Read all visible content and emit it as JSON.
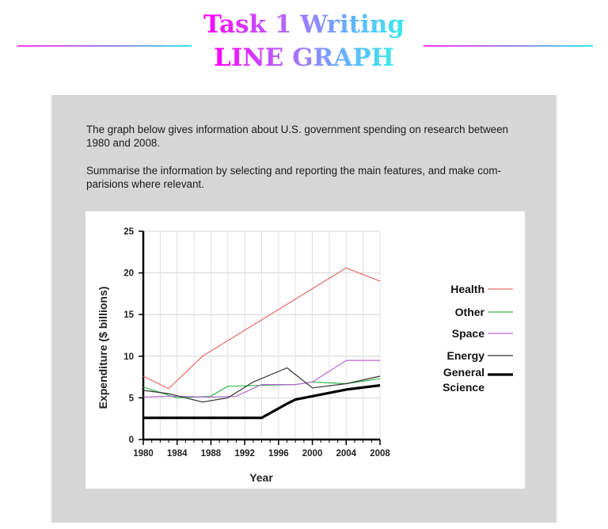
{
  "header": {
    "title_line1": "Task 1 Writing",
    "title_line2": "LINE GRAPH"
  },
  "prompt": {
    "paragraph1": "The graph below gives information about U.S. government spending on research between 1980 and 2008.",
    "paragraph2": "Summarise the information by selecting and reporting the main features, and make com-parisions where relevant."
  },
  "chart_data": {
    "type": "line",
    "xlabel": "Year",
    "ylabel": "Expenditure ($ billions)",
    "xlim": [
      1980,
      2008
    ],
    "ylim": [
      0,
      25
    ],
    "xticks": [
      1980,
      1984,
      1988,
      1992,
      1996,
      2000,
      2004,
      2008
    ],
    "yticks": [
      0,
      5,
      10,
      15,
      20,
      25
    ],
    "grid": true,
    "legend_position": "right",
    "series": [
      {
        "name": "Health",
        "color": "#e86a6a",
        "width": 1.2,
        "points": [
          [
            1980,
            7.6
          ],
          [
            1983,
            6.1
          ],
          [
            1987,
            10
          ],
          [
            2004,
            20.6
          ],
          [
            2008,
            19
          ]
        ]
      },
      {
        "name": "Other",
        "color": "#35b94a",
        "width": 1.2,
        "points": [
          [
            1980,
            6.3
          ],
          [
            1984,
            5
          ],
          [
            1988,
            5.2
          ],
          [
            1990,
            6.4
          ],
          [
            1994,
            6.5
          ],
          [
            1998,
            6.6
          ],
          [
            2000,
            6.9
          ],
          [
            2004,
            6.7
          ],
          [
            2008,
            7.3
          ]
        ]
      },
      {
        "name": "Space",
        "color": "#b469d6",
        "width": 1.2,
        "points": [
          [
            1980,
            5.1
          ],
          [
            1983,
            5.2
          ],
          [
            1988,
            5.1
          ],
          [
            1991,
            5.2
          ],
          [
            1994,
            6.6
          ],
          [
            1998,
            6.6
          ],
          [
            2000,
            6.9
          ],
          [
            2004,
            9.5
          ],
          [
            2008,
            9.5
          ]
        ]
      },
      {
        "name": "Energy",
        "color": "#333333",
        "width": 1.2,
        "points": [
          [
            1980,
            5.9
          ],
          [
            1983,
            5.5
          ],
          [
            1987,
            4.5
          ],
          [
            1990,
            5
          ],
          [
            1993,
            6.9
          ],
          [
            1997,
            8.6
          ],
          [
            2000,
            6.2
          ],
          [
            2004,
            6.7
          ],
          [
            2008,
            7.6
          ]
        ]
      },
      {
        "name": "General Science",
        "legend_lines": [
          "General",
          "Science"
        ],
        "color": "#000000",
        "width": 3.2,
        "points": [
          [
            1980,
            2.6
          ],
          [
            1994,
            2.6
          ],
          [
            1997,
            4.3
          ],
          [
            1998,
            4.8
          ],
          [
            2000,
            5.2
          ],
          [
            2004,
            6
          ],
          [
            2008,
            6.5
          ]
        ]
      }
    ]
  }
}
